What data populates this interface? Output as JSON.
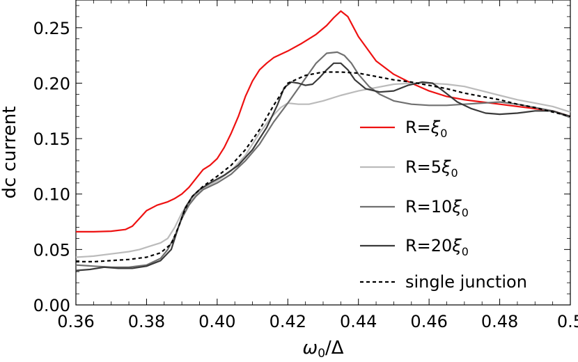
{
  "chart_data": {
    "type": "line",
    "title": "",
    "xlabel": "ω0/Δ",
    "ylabel": "dc current",
    "xlim": [
      0.36,
      0.5
    ],
    "ylim": [
      0.0,
      0.275
    ],
    "x_ticks": [
      0.36,
      0.38,
      0.4,
      0.42,
      0.44,
      0.46,
      0.48,
      0.5
    ],
    "x_tick_labels": [
      "0.36",
      "0.38",
      "0.40",
      "0.42",
      "0.44",
      "0.46",
      "0.48",
      "0.5"
    ],
    "y_ticks": [
      0.0,
      0.05,
      0.1,
      0.15,
      0.2,
      0.25
    ],
    "y_tick_labels": [
      "0.00",
      "0.05",
      "0.10",
      "0.15",
      "0.20",
      "0.25"
    ],
    "grid": false,
    "legend_position": "center-right",
    "series": [
      {
        "name": "R=ξ0",
        "color": "#ee1111",
        "dash": "solid",
        "x": [
          0.36,
          0.365,
          0.37,
          0.374,
          0.376,
          0.378,
          0.38,
          0.383,
          0.386,
          0.388,
          0.39,
          0.392,
          0.394,
          0.396,
          0.398,
          0.4,
          0.402,
          0.404,
          0.406,
          0.408,
          0.41,
          0.412,
          0.414,
          0.416,
          0.418,
          0.42,
          0.424,
          0.428,
          0.431,
          0.433,
          0.435,
          0.437,
          0.44,
          0.445,
          0.45,
          0.455,
          0.46,
          0.465,
          0.47,
          0.475,
          0.48,
          0.485,
          0.49,
          0.495,
          0.5
        ],
        "y": [
          0.066,
          0.066,
          0.0665,
          0.068,
          0.071,
          0.078,
          0.085,
          0.09,
          0.093,
          0.096,
          0.1,
          0.106,
          0.114,
          0.122,
          0.126,
          0.132,
          0.142,
          0.155,
          0.17,
          0.188,
          0.202,
          0.212,
          0.218,
          0.223,
          0.226,
          0.229,
          0.236,
          0.244,
          0.252,
          0.259,
          0.265,
          0.26,
          0.242,
          0.22,
          0.208,
          0.2,
          0.193,
          0.188,
          0.185,
          0.183,
          0.181,
          0.179,
          0.177,
          0.175,
          0.17
        ]
      },
      {
        "name": "R=5ξ0",
        "color": "#bbbbbb",
        "dash": "solid",
        "x": [
          0.36,
          0.365,
          0.37,
          0.375,
          0.378,
          0.381,
          0.384,
          0.386,
          0.388,
          0.39,
          0.392,
          0.394,
          0.396,
          0.4,
          0.404,
          0.408,
          0.412,
          0.415,
          0.418,
          0.42,
          0.423,
          0.426,
          0.43,
          0.435,
          0.44,
          0.445,
          0.45,
          0.455,
          0.46,
          0.465,
          0.47,
          0.475,
          0.48,
          0.485,
          0.49,
          0.495,
          0.5
        ],
        "y": [
          0.043,
          0.044,
          0.046,
          0.048,
          0.05,
          0.053,
          0.056,
          0.06,
          0.07,
          0.083,
          0.092,
          0.099,
          0.105,
          0.112,
          0.121,
          0.135,
          0.155,
          0.168,
          0.178,
          0.182,
          0.181,
          0.181,
          0.184,
          0.189,
          0.193,
          0.196,
          0.199,
          0.2,
          0.2,
          0.199,
          0.197,
          0.193,
          0.189,
          0.185,
          0.182,
          0.179,
          0.174
        ]
      },
      {
        "name": "R=10ξ0",
        "color": "#707070",
        "dash": "solid",
        "x": [
          0.36,
          0.365,
          0.37,
          0.375,
          0.38,
          0.384,
          0.386,
          0.388,
          0.39,
          0.392,
          0.394,
          0.396,
          0.4,
          0.404,
          0.408,
          0.412,
          0.416,
          0.42,
          0.424,
          0.428,
          0.431,
          0.434,
          0.436,
          0.438,
          0.44,
          0.443,
          0.446,
          0.45,
          0.455,
          0.46,
          0.465,
          0.47,
          0.475,
          0.48,
          0.485,
          0.49,
          0.495,
          0.5
        ],
        "y": [
          0.036,
          0.035,
          0.034,
          0.034,
          0.036,
          0.042,
          0.05,
          0.062,
          0.078,
          0.09,
          0.098,
          0.104,
          0.11,
          0.118,
          0.13,
          0.145,
          0.165,
          0.182,
          0.2,
          0.218,
          0.227,
          0.228,
          0.225,
          0.218,
          0.208,
          0.197,
          0.19,
          0.184,
          0.181,
          0.18,
          0.18,
          0.181,
          0.182,
          0.183,
          0.181,
          0.178,
          0.175,
          0.169
        ]
      },
      {
        "name": "R=20ξ0",
        "color": "#3a3a3a",
        "dash": "solid",
        "x": [
          0.36,
          0.364,
          0.368,
          0.372,
          0.376,
          0.38,
          0.384,
          0.387,
          0.389,
          0.391,
          0.393,
          0.395,
          0.398,
          0.402,
          0.406,
          0.41,
          0.414,
          0.417,
          0.419,
          0.421,
          0.423,
          0.425,
          0.427,
          0.429,
          0.431,
          0.433,
          0.435,
          0.437,
          0.439,
          0.442,
          0.446,
          0.45,
          0.454,
          0.458,
          0.461,
          0.464,
          0.468,
          0.472,
          0.476,
          0.48,
          0.485,
          0.49,
          0.495,
          0.5
        ],
        "y": [
          0.031,
          0.032,
          0.034,
          0.033,
          0.033,
          0.035,
          0.04,
          0.05,
          0.07,
          0.088,
          0.098,
          0.104,
          0.11,
          0.117,
          0.126,
          0.14,
          0.16,
          0.18,
          0.196,
          0.201,
          0.2,
          0.198,
          0.199,
          0.205,
          0.212,
          0.218,
          0.218,
          0.212,
          0.203,
          0.195,
          0.192,
          0.193,
          0.198,
          0.201,
          0.2,
          0.193,
          0.183,
          0.177,
          0.173,
          0.172,
          0.173,
          0.175,
          0.175,
          0.17
        ]
      },
      {
        "name": "single junction",
        "color": "#000000",
        "dash": "dashed",
        "x": [
          0.36,
          0.365,
          0.37,
          0.375,
          0.38,
          0.384,
          0.387,
          0.389,
          0.391,
          0.393,
          0.396,
          0.4,
          0.404,
          0.408,
          0.412,
          0.416,
          0.42,
          0.425,
          0.43,
          0.435,
          0.44,
          0.445,
          0.45,
          0.455,
          0.46,
          0.465,
          0.47,
          0.475,
          0.48,
          0.485,
          0.49,
          0.495,
          0.5
        ],
        "y": [
          0.039,
          0.039,
          0.04,
          0.041,
          0.043,
          0.047,
          0.055,
          0.07,
          0.087,
          0.098,
          0.107,
          0.116,
          0.126,
          0.14,
          0.158,
          0.18,
          0.2,
          0.207,
          0.21,
          0.21,
          0.209,
          0.206,
          0.203,
          0.201,
          0.198,
          0.195,
          0.191,
          0.188,
          0.185,
          0.181,
          0.178,
          0.174,
          0.17
        ]
      }
    ]
  }
}
